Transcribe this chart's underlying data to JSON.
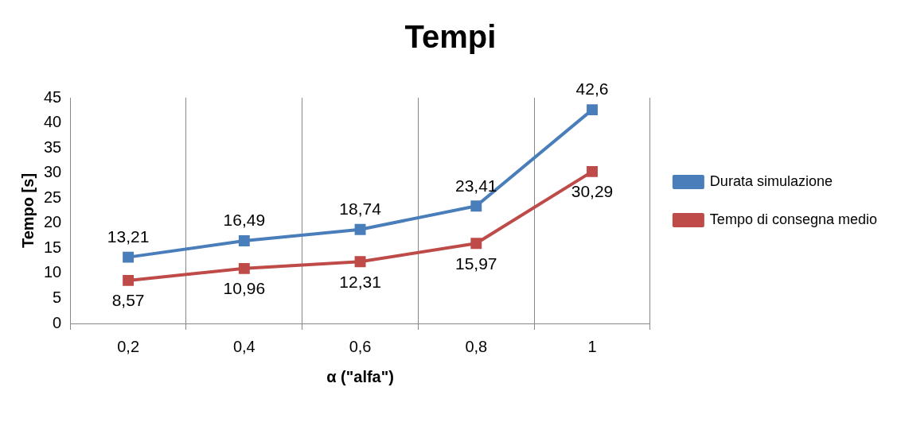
{
  "chart_data": {
    "type": "line",
    "title": "Tempi",
    "xlabel": "α (\"alfa\")",
    "ylabel": "Tempo [s]",
    "categories": [
      "0,2",
      "0,4",
      "0,6",
      "0,8",
      "1"
    ],
    "series": [
      {
        "name": "Durata simulazione",
        "color": "#4a7ebb",
        "values": [
          13.21,
          16.49,
          18.74,
          23.41,
          42.6
        ],
        "value_labels": [
          "13,21",
          "16,49",
          "18,74",
          "23,41",
          "42,6"
        ]
      },
      {
        "name": "Tempo di consegna medio",
        "color": "#be4b48",
        "values": [
          8.57,
          10.96,
          12.31,
          15.97,
          30.29
        ],
        "value_labels": [
          "8,57",
          "10,96",
          "12,31",
          "15,97",
          "30,29"
        ]
      }
    ],
    "ylim": [
      0,
      45
    ],
    "yticks": [
      0,
      5,
      10,
      15,
      20,
      25,
      30,
      35,
      40,
      45
    ],
    "grid": "x",
    "legend": "right",
    "marker": "square",
    "line_style": "solid"
  }
}
